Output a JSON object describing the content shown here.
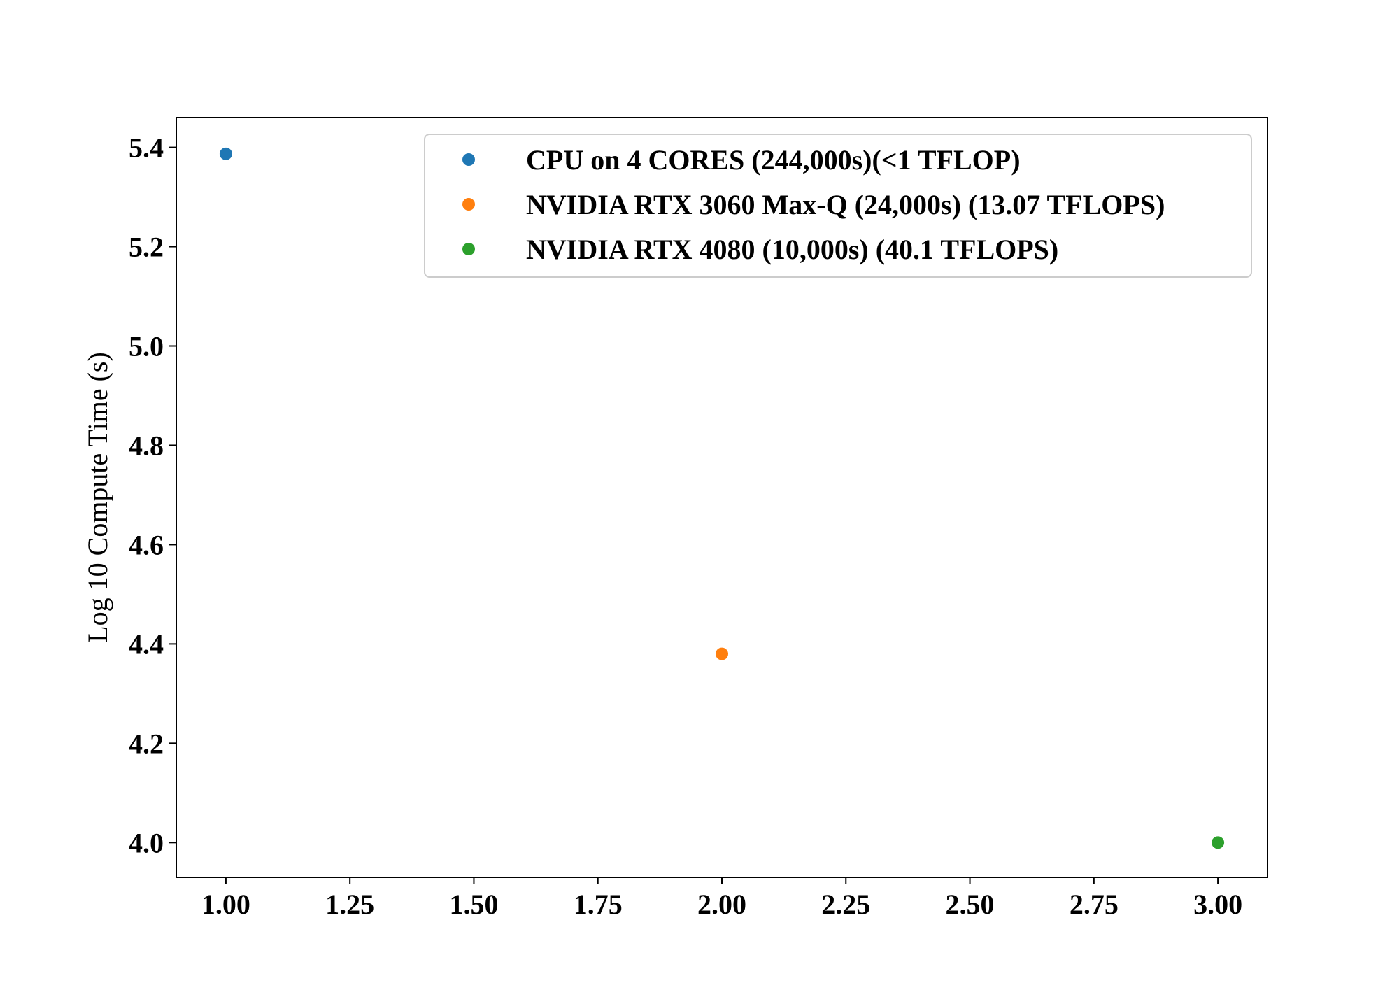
{
  "chart_data": {
    "type": "scatter",
    "title": "",
    "xlabel": "",
    "ylabel": "Log 10 Compute Time (s)",
    "xlim": [
      0.9,
      3.1
    ],
    "ylim": [
      3.93,
      5.46
    ],
    "xticks": [
      1.0,
      1.25,
      1.5,
      1.75,
      2.0,
      2.25,
      2.5,
      2.75,
      3.0
    ],
    "xtick_labels": [
      "1.00",
      "1.25",
      "1.50",
      "1.75",
      "2.00",
      "2.25",
      "2.50",
      "2.75",
      "3.00"
    ],
    "yticks": [
      4.0,
      4.2,
      4.4,
      4.6,
      4.8,
      5.0,
      5.2,
      5.4
    ],
    "ytick_labels": [
      "4.0",
      "4.2",
      "4.4",
      "4.6",
      "4.8",
      "5.0",
      "5.2",
      "5.4"
    ],
    "grid": false,
    "legend_position": "top-right",
    "series": [
      {
        "name": "CPU on 4 CORES (244,000s)(<1 TFLOP)",
        "color": "#1f77b4",
        "x": [
          1.0
        ],
        "y": [
          5.387
        ]
      },
      {
        "name": "NVIDIA RTX 3060 Max-Q (24,000s) (13.07 TFLOPS)",
        "color": "#ff7f0e",
        "x": [
          2.0
        ],
        "y": [
          4.38
        ]
      },
      {
        "name": "NVIDIA RTX 4080 (10,000s) (40.1 TFLOPS)",
        "color": "#2ca02c",
        "x": [
          3.0
        ],
        "y": [
          4.0
        ]
      }
    ]
  }
}
